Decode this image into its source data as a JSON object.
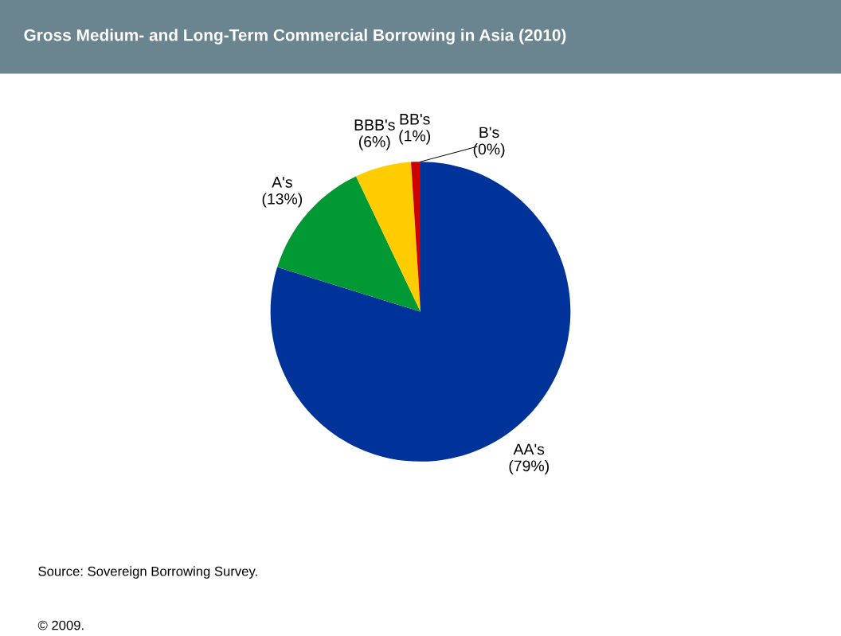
{
  "chart_data": {
    "type": "pie",
    "title": "Gross Medium- and Long-Term Commercial Borrowing in Asia (2010)",
    "categories": [
      "AA's",
      "A's",
      "BBB's",
      "BB's",
      "B's"
    ],
    "values": [
      79,
      13,
      6,
      1,
      0
    ],
    "value_labels": [
      "(79%)",
      "(13%)",
      "(6%)",
      "(1%)",
      "(0%)"
    ],
    "colors": [
      "#003399",
      "#009933",
      "#ffcc00",
      "#cc0000",
      null
    ],
    "annotations": [
      "Source: Sovereign Borrowing Survey.",
      "© 2009."
    ]
  }
}
